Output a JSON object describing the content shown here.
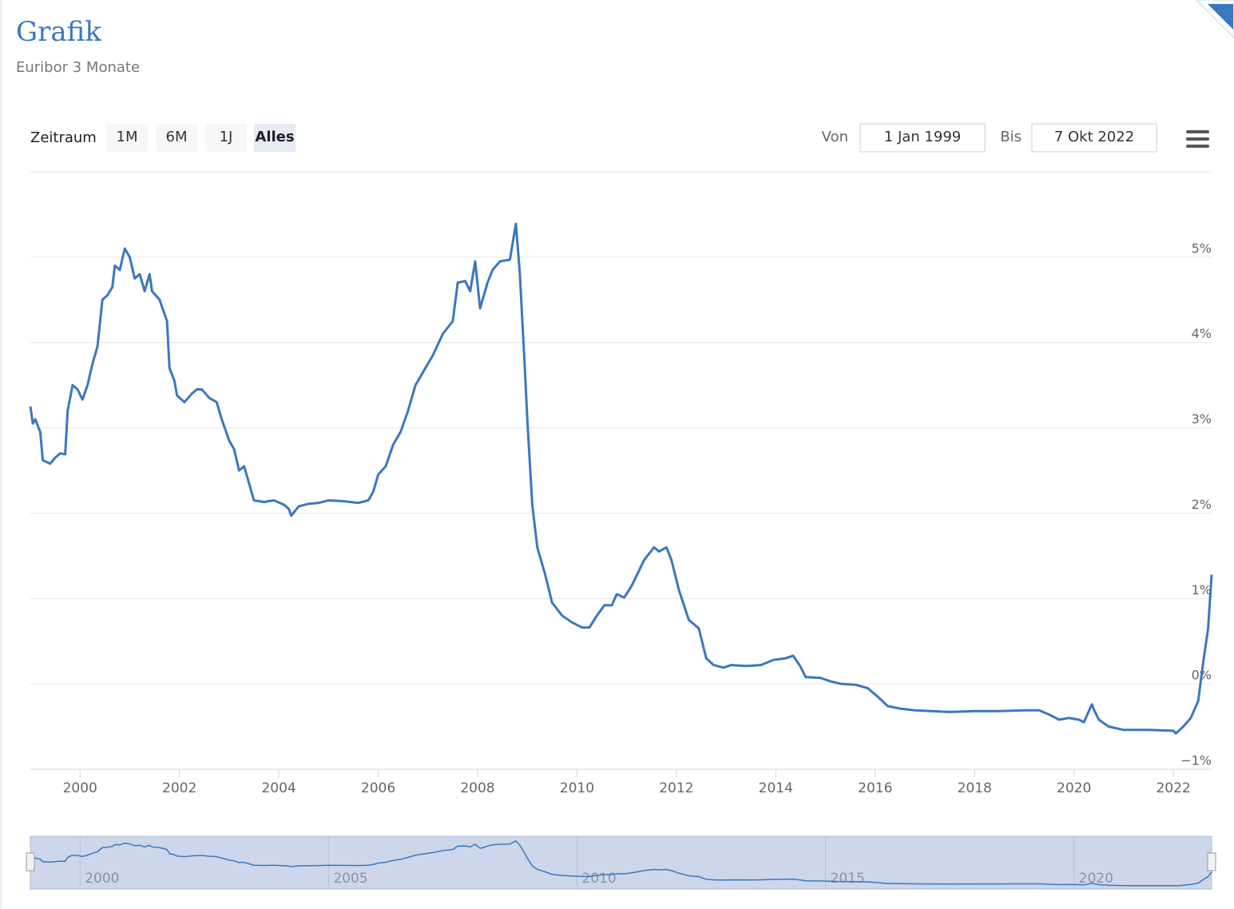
{
  "ui": {
    "title": "Grafik",
    "subtitle": "Euribor 3 Monate",
    "range_label": "Zeitraum",
    "buttons": [
      "1M",
      "6M",
      "1J",
      "Alles"
    ],
    "from_label": "Von",
    "from_value": "1 Jan 1999",
    "to_label": "Bis",
    "to_value": "7 Okt 2022"
  },
  "chart_data": {
    "type": "line",
    "x": [
      1999.0,
      1999.05,
      1999.1,
      1999.2,
      1999.25,
      1999.4,
      1999.5,
      1999.6,
      1999.7,
      1999.75,
      1999.85,
      1999.95,
      2000.05,
      2000.15,
      2000.25,
      2000.35,
      2000.45,
      2000.55,
      2000.65,
      2000.7,
      2000.8,
      2000.9,
      2001.0,
      2001.1,
      2001.2,
      2001.3,
      2001.4,
      2001.45,
      2001.6,
      2001.75,
      2001.8,
      2001.9,
      2001.95,
      2002.1,
      2002.25,
      2002.35,
      2002.45,
      2002.6,
      2002.75,
      2002.85,
      2003.0,
      2003.1,
      2003.2,
      2003.3,
      2003.4,
      2003.5,
      2003.7,
      2003.9,
      2004.1,
      2004.2,
      2004.25,
      2004.4,
      2004.6,
      2004.8,
      2005.0,
      2005.3,
      2005.6,
      2005.8,
      2005.9,
      2006.0,
      2006.15,
      2006.3,
      2006.45,
      2006.6,
      2006.75,
      2006.9,
      2007.1,
      2007.3,
      2007.5,
      2007.6,
      2007.75,
      2007.85,
      2007.95,
      2008.05,
      2008.2,
      2008.3,
      2008.45,
      2008.65,
      2008.77,
      2008.85,
      2008.95,
      2009.0,
      2009.1,
      2009.2,
      2009.35,
      2009.5,
      2009.7,
      2009.9,
      2010.1,
      2010.25,
      2010.4,
      2010.55,
      2010.7,
      2010.8,
      2010.95,
      2011.1,
      2011.35,
      2011.55,
      2011.65,
      2011.8,
      2011.9,
      2012.05,
      2012.25,
      2012.45,
      2012.6,
      2012.75,
      2012.95,
      2013.1,
      2013.4,
      2013.7,
      2013.95,
      2014.2,
      2014.35,
      2014.5,
      2014.6,
      2014.9,
      2015.1,
      2015.3,
      2015.6,
      2015.85,
      2016.05,
      2016.25,
      2016.5,
      2016.8,
      2017.5,
      2018.0,
      2018.5,
      2019.0,
      2019.3,
      2019.5,
      2019.7,
      2019.9,
      2020.1,
      2020.2,
      2020.36,
      2020.4,
      2020.5,
      2020.7,
      2021.0,
      2021.5,
      2022.0,
      2022.05,
      2022.2,
      2022.35,
      2022.5,
      2022.6,
      2022.7,
      2022.77
    ],
    "series": [
      {
        "name": "Euribor 3 Monate",
        "color": "#3a78bf",
        "values": [
          3.25,
          3.05,
          3.1,
          2.95,
          2.62,
          2.58,
          2.65,
          2.7,
          2.69,
          3.2,
          3.5,
          3.45,
          3.33,
          3.5,
          3.75,
          3.95,
          4.5,
          4.55,
          4.65,
          4.9,
          4.85,
          5.1,
          5.0,
          4.75,
          4.8,
          4.6,
          4.8,
          4.6,
          4.5,
          4.25,
          3.7,
          3.55,
          3.38,
          3.3,
          3.4,
          3.45,
          3.45,
          3.35,
          3.3,
          3.1,
          2.85,
          2.75,
          2.5,
          2.55,
          2.35,
          2.15,
          2.13,
          2.15,
          2.1,
          2.05,
          1.97,
          2.08,
          2.11,
          2.12,
          2.15,
          2.14,
          2.12,
          2.15,
          2.25,
          2.45,
          2.55,
          2.8,
          2.95,
          3.2,
          3.5,
          3.65,
          3.85,
          4.1,
          4.25,
          4.7,
          4.72,
          4.6,
          4.95,
          4.4,
          4.7,
          4.85,
          4.95,
          4.97,
          5.39,
          4.8,
          3.7,
          3.1,
          2.1,
          1.6,
          1.3,
          0.95,
          0.8,
          0.72,
          0.66,
          0.66,
          0.8,
          0.92,
          0.92,
          1.05,
          1.01,
          1.15,
          1.45,
          1.6,
          1.55,
          1.6,
          1.45,
          1.1,
          0.75,
          0.65,
          0.3,
          0.22,
          0.19,
          0.22,
          0.21,
          0.22,
          0.28,
          0.3,
          0.33,
          0.2,
          0.08,
          0.07,
          0.03,
          0.0,
          -0.01,
          -0.05,
          -0.15,
          -0.26,
          -0.29,
          -0.31,
          -0.33,
          -0.32,
          -0.32,
          -0.31,
          -0.31,
          -0.36,
          -0.42,
          -0.4,
          -0.42,
          -0.45,
          -0.24,
          -0.3,
          -0.42,
          -0.5,
          -0.54,
          -0.54,
          -0.55,
          -0.58,
          -0.5,
          -0.4,
          -0.2,
          0.25,
          0.65,
          1.28
        ]
      }
    ],
    "xlim": [
      1999.0,
      2022.77
    ],
    "xticks": [
      2000,
      2002,
      2004,
      2006,
      2008,
      2010,
      2012,
      2014,
      2016,
      2018,
      2020,
      2022
    ],
    "ylim": [
      -1,
      6
    ],
    "yticks": [
      {
        "value": -1,
        "label": "−1%"
      },
      {
        "value": 0,
        "label": "0%"
      },
      {
        "value": 1,
        "label": "1%"
      },
      {
        "value": 2,
        "label": "2%"
      },
      {
        "value": 3,
        "label": "3%"
      },
      {
        "value": 4,
        "label": "4%"
      },
      {
        "value": 5,
        "label": "5%"
      }
    ],
    "grid": true,
    "navigator_xticks": [
      2000,
      2005,
      2010,
      2015,
      2020
    ]
  }
}
